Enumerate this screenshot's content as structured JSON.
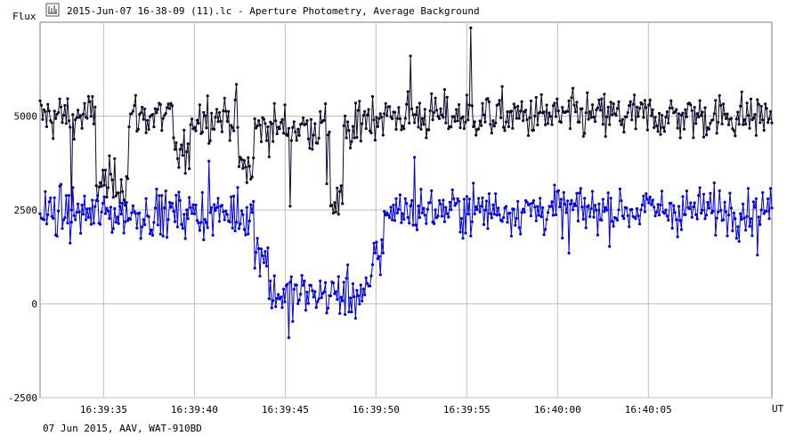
{
  "window": {
    "title": "2015-Jun-07 16-38-09 (11).lc - Aperture Photometry, Average Background",
    "icon": "lightcurve-app-icon"
  },
  "footer": {
    "info": "07 Jun 2015, AAV, WAT-910BD"
  },
  "chart_data": {
    "type": "line",
    "ylabel": "Flux",
    "xlabel": "UT",
    "yticks": [
      "5000",
      "2500",
      "0",
      "-2500"
    ],
    "ytick_values": [
      5000,
      2500,
      0,
      -2500
    ],
    "ylim": [
      -2500,
      7500
    ],
    "xticks": [
      "16:39:35",
      "16:39:40",
      "16:39:45",
      "16:39:50",
      "16:39:55",
      "16:40:00",
      "16:40:05"
    ],
    "xtick_values": [
      5,
      10,
      15,
      20,
      25,
      30,
      35
    ],
    "xlim": [
      1.5,
      41.8
    ],
    "grid": true,
    "series": [
      {
        "color": "#0a0a2a",
        "baseline": 5000,
        "segments": [
          {
            "x": [
              1.5,
              4.6
            ],
            "level": 5000
          },
          {
            "x": [
              4.6,
              6.4
            ],
            "level": 3200
          },
          {
            "x": [
              6.4,
              8.8
            ],
            "level": 5000
          },
          {
            "x": [
              8.8,
              9.8
            ],
            "level": 4000
          },
          {
            "x": [
              9.8,
              12.4
            ],
            "level": 5000
          },
          {
            "x": [
              12.4,
              13.3
            ],
            "level": 3600
          },
          {
            "x": [
              13.3,
              17.5
            ],
            "level": 4700
          },
          {
            "x": [
              17.5,
              18.2
            ],
            "level": 2700
          },
          {
            "x": [
              18.2,
              19.0
            ],
            "level": 4500
          },
          {
            "x": [
              19.0,
              41.8
            ],
            "level": 5000
          }
        ],
        "spikes": [
          [
            3.2,
            2500
          ],
          [
            9.7,
            3600
          ],
          [
            15.3,
            2600
          ],
          [
            17.3,
            3200
          ],
          [
            25.2,
            7350
          ],
          [
            21.9,
            6600
          ]
        ]
      },
      {
        "color": "#0000e0",
        "baseline": 2400,
        "segments": [
          {
            "x": [
              1.5,
              13.3
            ],
            "level": 2400
          },
          {
            "x": [
              13.3,
              14.1
            ],
            "level": 1400
          },
          {
            "x": [
              14.1,
              19.8
            ],
            "level": 250
          },
          {
            "x": [
              19.8,
              20.4
            ],
            "level": 1300
          },
          {
            "x": [
              20.4,
              41.8
            ],
            "level": 2500
          }
        ],
        "spikes": [
          [
            15.2,
            -900
          ],
          [
            10.8,
            3800
          ],
          [
            12.4,
            3100
          ],
          [
            22.1,
            3900
          ],
          [
            30.6,
            1350
          ],
          [
            41.0,
            1300
          ]
        ]
      }
    ]
  }
}
